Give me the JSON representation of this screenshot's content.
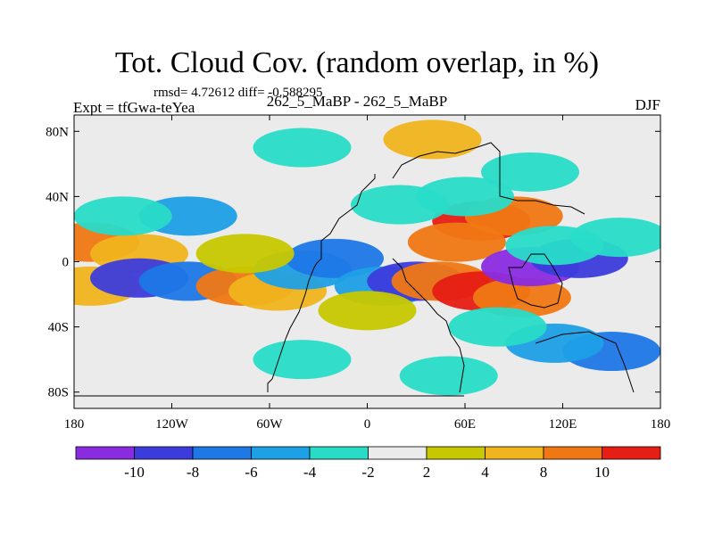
{
  "header": {
    "title": "Tot. Cloud Cov. (random overlap, in %)",
    "stats": "rmsd= 4.72612 diff= -0.588295",
    "expt": "Expt = tfGwa-teYea",
    "runs": "262_5_MaBP - 262_5_MaBP",
    "season": "DJF"
  },
  "chart_data": {
    "type": "heatmap",
    "title": "Tot. Cloud Cov. (random overlap, in %)",
    "xlabel": "",
    "ylabel": "",
    "xlim": [
      -180,
      180
    ],
    "ylim": [
      -90,
      90
    ],
    "x_ticks": [
      {
        "value": -180,
        "label": "180"
      },
      {
        "value": -120,
        "label": "120W"
      },
      {
        "value": -60,
        "label": "60W"
      },
      {
        "value": 0,
        "label": "0"
      },
      {
        "value": 60,
        "label": "60E"
      },
      {
        "value": 120,
        "label": "120E"
      },
      {
        "value": 180,
        "label": "180"
      }
    ],
    "y_ticks": [
      {
        "value": 80,
        "label": "80N"
      },
      {
        "value": 40,
        "label": "40N"
      },
      {
        "value": 0,
        "label": "0"
      },
      {
        "value": -40,
        "label": "40S"
      },
      {
        "value": -80,
        "label": "80S"
      }
    ],
    "colorbar": {
      "colors": [
        "#8a2be2",
        "#3c3cdc",
        "#1e78e6",
        "#1ea0e6",
        "#28dcc8",
        "#ebebeb",
        "#c8c800",
        "#f0b41e",
        "#f07814",
        "#e61e14"
      ],
      "labels": [
        "-10",
        "-8",
        "-6",
        "-4",
        "-2",
        "2",
        "4",
        "8",
        "10"
      ]
    },
    "anomalies": [
      {
        "lon": -170,
        "lat": 12,
        "value": 9
      },
      {
        "lon": -140,
        "lat": 5,
        "value": 7
      },
      {
        "lon": -170,
        "lat": -15,
        "value": 5
      },
      {
        "lon": -110,
        "lat": 28,
        "value": -5
      },
      {
        "lon": -150,
        "lat": 28,
        "value": -3
      },
      {
        "lon": -140,
        "lat": -10,
        "value": -9
      },
      {
        "lon": -110,
        "lat": -12,
        "value": -8
      },
      {
        "lon": -75,
        "lat": -15,
        "value": 8
      },
      {
        "lon": -55,
        "lat": -18,
        "value": 7
      },
      {
        "lon": -40,
        "lat": -5,
        "value": -6
      },
      {
        "lon": -20,
        "lat": 2,
        "value": -7
      },
      {
        "lon": 10,
        "lat": -15,
        "value": -5
      },
      {
        "lon": 30,
        "lat": -12,
        "value": -9
      },
      {
        "lon": 45,
        "lat": -12,
        "value": 9
      },
      {
        "lon": 70,
        "lat": -18,
        "value": 10
      },
      {
        "lon": 95,
        "lat": -22,
        "value": 8
      },
      {
        "lon": 70,
        "lat": 25,
        "value": 10
      },
      {
        "lon": 90,
        "lat": 28,
        "value": 9
      },
      {
        "lon": 55,
        "lat": 12,
        "value": 9
      },
      {
        "lon": 100,
        "lat": -3,
        "value": -11
      },
      {
        "lon": 130,
        "lat": 2,
        "value": -10
      },
      {
        "lon": 115,
        "lat": 10,
        "value": -4
      },
      {
        "lon": 155,
        "lat": 15,
        "value": -3
      },
      {
        "lon": 150,
        "lat": -55,
        "value": -8
      },
      {
        "lon": 115,
        "lat": -50,
        "value": -5
      },
      {
        "lon": 80,
        "lat": -40,
        "value": -3
      },
      {
        "lon": -40,
        "lat": -60,
        "value": -3
      },
      {
        "lon": 50,
        "lat": -70,
        "value": -3
      },
      {
        "lon": 100,
        "lat": 55,
        "value": -3
      },
      {
        "lon": 60,
        "lat": 40,
        "value": -3
      },
      {
        "lon": 20,
        "lat": 35,
        "value": -4
      },
      {
        "lon": -40,
        "lat": 70,
        "value": -3
      },
      {
        "lon": 40,
        "lat": 75,
        "value": 4
      },
      {
        "lon": -75,
        "lat": 5,
        "value": 3
      },
      {
        "lon": 0,
        "lat": -30,
        "value": 3
      }
    ]
  }
}
